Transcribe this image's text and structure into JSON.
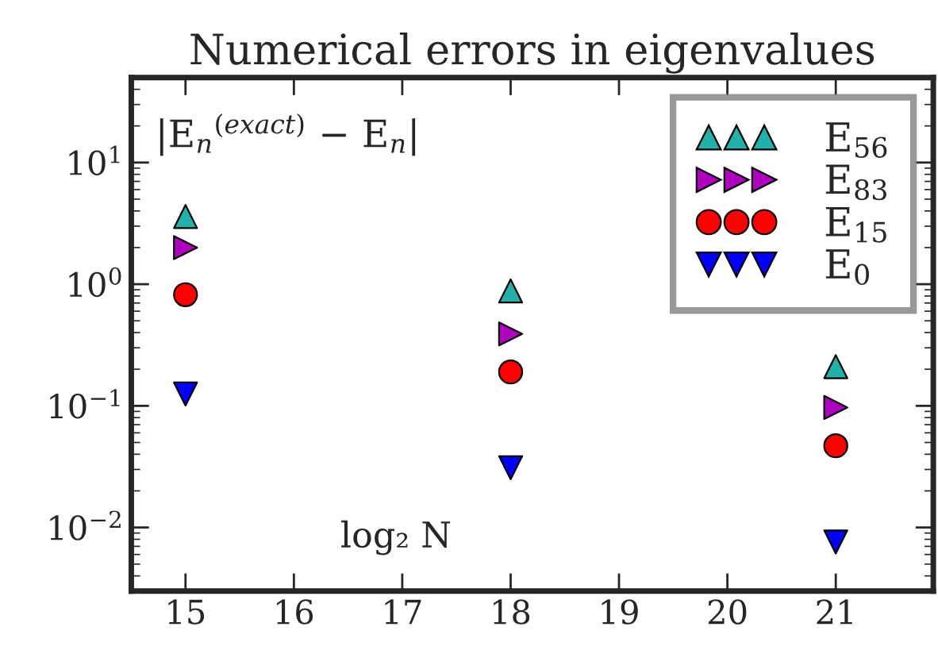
{
  "chart_data": {
    "type": "scatter",
    "title": "Numerical errors in eigenvalues",
    "xlabel": "log₂ N",
    "ylabel": "|E$_{n}$$^{(exact)}$ − E$_{n}$|",
    "x": [
      15,
      18,
      21
    ],
    "series": [
      {
        "name": "E$_{56}$",
        "color": "#20b2aa",
        "marker": "triangle",
        "values": [
          3.6,
          0.88,
          0.21
        ]
      },
      {
        "name": "E$_{83}$",
        "color": "#b000c0",
        "marker": "triangle-right",
        "values": [
          2.0,
          0.39,
          0.097
        ]
      },
      {
        "name": "E$_{15}$",
        "color": "#ff0000",
        "marker": "circle",
        "values": [
          0.82,
          0.19,
          0.047
        ]
      },
      {
        "name": "E$_{0}$",
        "color": "#0000ff",
        "marker": "triangle-down",
        "values": [
          0.125,
          0.031,
          0.0076
        ]
      }
    ],
    "log": "y",
    "xlim": [
      14.5,
      21.9
    ],
    "ylim": [
      0.003,
      50
    ],
    "xticks": [
      15,
      16,
      17,
      18,
      19,
      20,
      21
    ],
    "yticks": [
      {
        "value": 0.01,
        "label": "10$^{−2}$"
      },
      {
        "value": 0.1,
        "label": "10$^{−1}$"
      },
      {
        "value": 1,
        "label": "10$^{0}$"
      },
      {
        "value": 10,
        "label": "10$^{1}$"
      }
    ],
    "legend": "top right",
    "grid": false
  }
}
